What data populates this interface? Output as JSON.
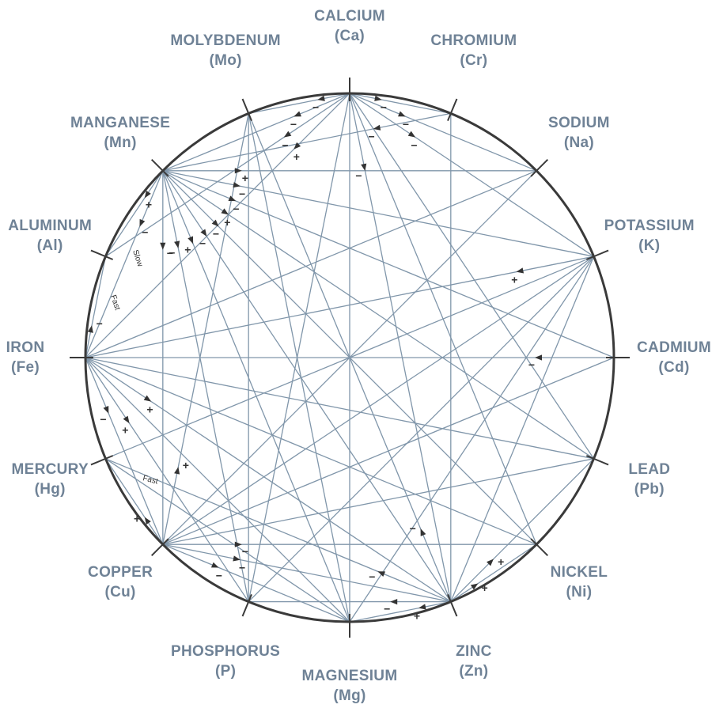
{
  "elements": [
    {
      "id": "Ca",
      "name": "CALCIUM",
      "symbol": "(Ca)"
    },
    {
      "id": "Cr",
      "name": "CHROMIUM",
      "symbol": "(Cr)"
    },
    {
      "id": "Na",
      "name": "SODIUM",
      "symbol": "(Na)"
    },
    {
      "id": "K",
      "name": "POTASSIUM",
      "symbol": "(K)"
    },
    {
      "id": "Cd",
      "name": "CADMIUM",
      "symbol": "(Cd)"
    },
    {
      "id": "Pb",
      "name": "LEAD",
      "symbol": "(Pb)"
    },
    {
      "id": "Ni",
      "name": "NICKEL",
      "symbol": "(Ni)"
    },
    {
      "id": "Zn",
      "name": "ZINC",
      "symbol": "(Zn)"
    },
    {
      "id": "Mg",
      "name": "MAGNESIUM",
      "symbol": "(Mg)"
    },
    {
      "id": "P",
      "name": "PHOSPHORUS",
      "symbol": "(P)"
    },
    {
      "id": "Cu",
      "name": "COPPER",
      "symbol": "(Cu)"
    },
    {
      "id": "Hg",
      "name": "MERCURY",
      "symbol": "(Hg)"
    },
    {
      "id": "Fe",
      "name": "IRON",
      "symbol": "(Fe)"
    },
    {
      "id": "Al",
      "name": "ALUMINUM",
      "symbol": "(Al)"
    },
    {
      "id": "Mn",
      "name": "MANGANESE",
      "symbol": "(Mn)"
    },
    {
      "id": "Mo",
      "name": "MOLYBDENUM",
      "symbol": "(Mo)"
    }
  ],
  "interactions": [
    {
      "from": "Ca",
      "to": "Cr",
      "sign": "−"
    },
    {
      "from": "Ca",
      "to": "Mn",
      "sign": "−"
    },
    {
      "from": "Ca",
      "to": "Mo",
      "sign": "−"
    },
    {
      "from": "Ca",
      "to": "Na",
      "sign": "−"
    },
    {
      "from": "Ca",
      "to": "K",
      "sign": "−"
    },
    {
      "from": "Ca",
      "to": "Fe",
      "sign": "+"
    },
    {
      "from": "Ca",
      "to": "Al",
      "sign": "−"
    },
    {
      "from": "Ca",
      "to": "Mg",
      "sign": ""
    },
    {
      "from": "Ca",
      "to": "Zn",
      "sign": "−"
    },
    {
      "from": "Ca",
      "to": "Ni",
      "sign": ""
    },
    {
      "from": "Ca",
      "to": "Pb",
      "sign": ""
    },
    {
      "from": "Ca",
      "to": "P",
      "sign": ""
    },
    {
      "from": "Cr",
      "to": "Mn",
      "sign": "−"
    },
    {
      "from": "Cr",
      "to": "Zn",
      "sign": ""
    },
    {
      "from": "Mn",
      "to": "Na",
      "sign": "+"
    },
    {
      "from": "Mn",
      "to": "K",
      "sign": "−"
    },
    {
      "from": "Mn",
      "to": "Cd",
      "sign": "−"
    },
    {
      "from": "Mn",
      "to": "Pb",
      "sign": "+"
    },
    {
      "from": "Mn",
      "to": "Ni",
      "sign": "−"
    },
    {
      "from": "Mn",
      "to": "Zn",
      "sign": "−"
    },
    {
      "from": "Mn",
      "to": "Mg",
      "sign": "+"
    },
    {
      "from": "Mn",
      "to": "P",
      "sign": "−"
    },
    {
      "from": "Mn",
      "to": "Cu",
      "sign": "−"
    },
    {
      "from": "Mn",
      "to": "Fe",
      "sign": "−"
    },
    {
      "from": "Mn",
      "to": "Al",
      "sign": "+"
    },
    {
      "from": "K",
      "to": "Fe",
      "sign": "+"
    },
    {
      "from": "K",
      "to": "Hg",
      "sign": ""
    },
    {
      "from": "K",
      "to": "Cu",
      "sign": ""
    },
    {
      "from": "K",
      "to": "Mg",
      "sign": ""
    },
    {
      "from": "K",
      "to": "P",
      "sign": ""
    },
    {
      "from": "Na",
      "to": "Fe",
      "sign": ""
    },
    {
      "from": "Na",
      "to": "Cu",
      "sign": ""
    },
    {
      "from": "Cd",
      "to": "Fe",
      "sign": "−"
    },
    {
      "from": "Cd",
      "to": "Cu",
      "sign": ""
    },
    {
      "from": "Pb",
      "to": "Fe",
      "sign": ""
    },
    {
      "from": "Pb",
      "to": "Cu",
      "sign": ""
    },
    {
      "from": "Ni",
      "to": "Fe",
      "sign": ""
    },
    {
      "from": "Fe",
      "to": "Zn",
      "sign": "+"
    },
    {
      "from": "Fe",
      "to": "P",
      "sign": "+"
    },
    {
      "from": "Fe",
      "to": "Mg",
      "sign": ""
    },
    {
      "from": "Fe",
      "to": "Cu",
      "sign": "−"
    },
    {
      "from": "Fe",
      "to": "Al",
      "sign": "−"
    },
    {
      "from": "Cu",
      "to": "Zn",
      "sign": "−"
    },
    {
      "from": "Cu",
      "to": "Mo",
      "sign": "+"
    },
    {
      "from": "Cu",
      "to": "Mg",
      "sign": "−"
    },
    {
      "from": "Cu",
      "to": "Ni",
      "sign": "−"
    },
    {
      "from": "Cu",
      "to": "Hg",
      "sign": "+"
    },
    {
      "from": "Zn",
      "to": "Mg",
      "sign": "+"
    },
    {
      "from": "Zn",
      "to": "P",
      "sign": "−"
    },
    {
      "from": "Zn",
      "to": "Hg",
      "sign": "−"
    },
    {
      "from": "Zn",
      "to": "Mo",
      "sign": "−"
    },
    {
      "from": "Zn",
      "to": "Ni",
      "sign": "+"
    },
    {
      "from": "Zn",
      "to": "Pb",
      "sign": "+"
    },
    {
      "from": "Zn",
      "to": "K",
      "sign": ""
    },
    {
      "from": "Mg",
      "to": "Hg",
      "sign": ""
    },
    {
      "from": "Mg",
      "to": "Mo",
      "sign": ""
    },
    {
      "from": "P",
      "to": "Mo",
      "sign": ""
    }
  ],
  "annotations": {
    "slow": "Slow",
    "fast_upper": "Fast",
    "fast_lower": "Fast"
  },
  "colors": {
    "ring": "#3a3a3a",
    "line": "#8096aa",
    "label": "#6f8296",
    "arrow": "#333333"
  }
}
